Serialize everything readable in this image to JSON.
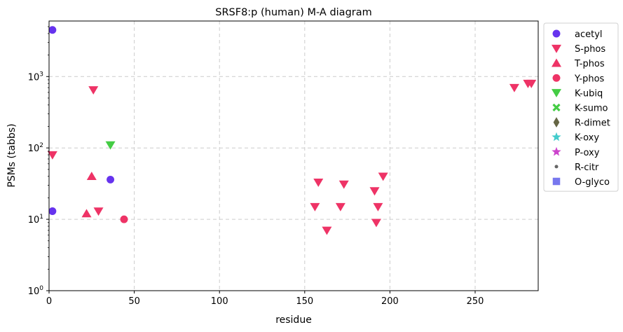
{
  "chart_data": {
    "type": "scatter",
    "title": "SRSF8:p (human) M-A diagram",
    "xlabel": "residue",
    "ylabel": "PSMs (tabbs)",
    "xlim": [
      0,
      287
    ],
    "ylim": [
      1,
      6000
    ],
    "yscale": "log",
    "grid": true,
    "legend_position": "outside-right",
    "x_ticks": [
      0,
      50,
      100,
      150,
      200,
      250
    ],
    "y_ticks": [
      {
        "value": 1,
        "base": "10",
        "exp": "0"
      },
      {
        "value": 10,
        "base": "10",
        "exp": "1"
      },
      {
        "value": 100,
        "base": "10",
        "exp": "2"
      },
      {
        "value": 1000,
        "base": "10",
        "exp": "3"
      }
    ],
    "series": [
      {
        "name": "acetyl",
        "color": "#6633ee",
        "marker": "circle",
        "points": [
          [
            2,
            4500
          ],
          [
            2,
            13
          ],
          [
            36,
            36
          ]
        ]
      },
      {
        "name": "S-phos",
        "color": "#ee3366",
        "marker": "triangle-down",
        "points": [
          [
            2,
            80
          ],
          [
            26,
            650
          ],
          [
            29,
            13
          ],
          [
            156,
            15
          ],
          [
            158,
            33
          ],
          [
            163,
            7
          ],
          [
            171,
            15
          ],
          [
            173,
            31
          ],
          [
            191,
            25
          ],
          [
            192,
            9
          ],
          [
            193,
            15
          ],
          [
            196,
            40
          ],
          [
            273,
            700
          ],
          [
            281,
            800
          ],
          [
            283,
            800
          ]
        ]
      },
      {
        "name": "T-phos",
        "color": "#ee3366",
        "marker": "triangle-up",
        "points": [
          [
            22,
            12
          ],
          [
            25,
            40
          ]
        ]
      },
      {
        "name": "Y-phos",
        "color": "#ee3366",
        "marker": "circle",
        "points": [
          [
            44,
            10
          ]
        ]
      },
      {
        "name": "K-ubiq",
        "color": "#44cc44",
        "marker": "triangle-down",
        "points": [
          [
            36,
            110
          ]
        ]
      },
      {
        "name": "K-sumo",
        "color": "#44cc44",
        "marker": "x",
        "points": []
      },
      {
        "name": "R-dimet",
        "color": "#666644",
        "marker": "diamond",
        "points": []
      },
      {
        "name": "K-oxy",
        "color": "#44cccc",
        "marker": "star",
        "points": []
      },
      {
        "name": "P-oxy",
        "color": "#cc44cc",
        "marker": "star",
        "points": []
      },
      {
        "name": "R-citr",
        "color": "#666666",
        "marker": "dot",
        "points": []
      },
      {
        "name": "O-glyco",
        "color": "#7777ee",
        "marker": "square",
        "points": []
      }
    ]
  }
}
